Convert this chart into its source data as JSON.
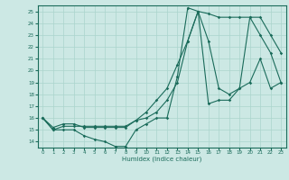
{
  "xlabel": "Humidex (Indice chaleur)",
  "bg_color": "#cce8e4",
  "line_color": "#1a6b5a",
  "grid_color": "#aad4cc",
  "xlim": [
    -0.5,
    23.5
  ],
  "ylim": [
    13.5,
    25.5
  ],
  "xticks": [
    0,
    1,
    2,
    3,
    4,
    5,
    6,
    7,
    8,
    9,
    10,
    11,
    12,
    13,
    14,
    15,
    16,
    17,
    18,
    19,
    20,
    21,
    22,
    23
  ],
  "yticks": [
    14,
    15,
    16,
    17,
    18,
    19,
    20,
    21,
    22,
    23,
    24,
    25
  ],
  "line1_x": [
    0,
    1,
    2,
    3,
    4,
    5,
    6,
    7,
    8,
    9,
    10,
    11,
    12,
    13,
    14,
    15,
    16,
    17,
    18,
    19,
    20,
    21,
    22,
    23
  ],
  "line1_y": [
    16.0,
    15.0,
    15.0,
    15.0,
    14.5,
    14.2,
    14.0,
    13.6,
    13.6,
    15.0,
    15.5,
    16.0,
    16.0,
    19.5,
    25.3,
    25.0,
    17.2,
    17.5,
    17.5,
    18.5,
    19.0,
    21.0,
    18.5,
    19.0
  ],
  "line2_x": [
    0,
    1,
    2,
    3,
    4,
    5,
    6,
    7,
    8,
    9,
    10,
    11,
    12,
    13,
    14,
    15,
    16,
    17,
    18,
    19,
    20,
    21,
    22,
    23
  ],
  "line2_y": [
    16.0,
    15.0,
    15.3,
    15.3,
    15.3,
    15.3,
    15.3,
    15.3,
    15.3,
    15.8,
    16.0,
    16.5,
    17.5,
    19.0,
    22.5,
    25.0,
    24.8,
    24.5,
    24.5,
    24.5,
    24.5,
    23.0,
    21.5,
    19.0
  ],
  "line3_x": [
    0,
    1,
    2,
    3,
    4,
    5,
    6,
    7,
    8,
    9,
    10,
    11,
    12,
    13,
    14,
    15,
    16,
    17,
    18,
    19,
    20,
    21,
    22,
    23
  ],
  "line3_y": [
    16.0,
    15.2,
    15.5,
    15.5,
    15.2,
    15.2,
    15.2,
    15.2,
    15.2,
    15.8,
    16.5,
    17.5,
    18.5,
    20.5,
    22.5,
    25.0,
    22.5,
    18.5,
    18.0,
    18.5,
    24.5,
    24.5,
    23.0,
    21.5
  ]
}
